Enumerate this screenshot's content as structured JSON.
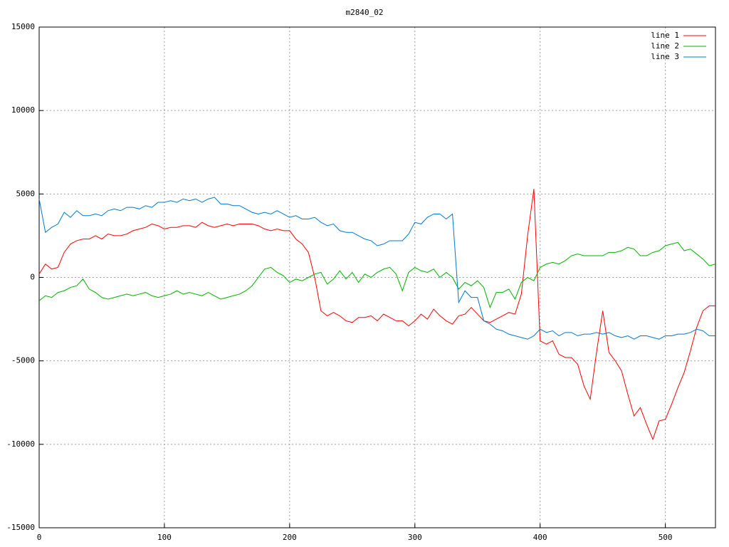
{
  "chart_data": {
    "type": "line",
    "title": "m2840_02",
    "x": [
      0,
      5,
      10,
      15,
      20,
      25,
      30,
      35,
      40,
      45,
      50,
      55,
      60,
      65,
      70,
      75,
      80,
      85,
      90,
      95,
      100,
      105,
      110,
      115,
      120,
      125,
      130,
      135,
      140,
      145,
      150,
      155,
      160,
      165,
      170,
      175,
      180,
      185,
      190,
      195,
      200,
      205,
      210,
      215,
      220,
      225,
      230,
      235,
      240,
      245,
      250,
      255,
      260,
      265,
      270,
      275,
      280,
      285,
      290,
      295,
      300,
      305,
      310,
      315,
      320,
      325,
      330,
      335,
      340,
      345,
      350,
      355,
      360,
      365,
      370,
      375,
      380,
      385,
      390,
      395,
      400,
      405,
      410,
      415,
      420,
      425,
      430,
      435,
      440,
      445,
      450,
      455,
      460,
      465,
      470,
      475,
      480,
      485,
      490,
      495,
      500,
      505,
      510,
      515,
      520,
      525,
      530,
      535,
      540
    ],
    "series": [
      {
        "name": "line 1",
        "color": "#ff0000",
        "values": [
          200,
          800,
          500,
          600,
          1500,
          2000,
          2200,
          2300,
          2300,
          2500,
          2300,
          2600,
          2500,
          2500,
          2600,
          2800,
          2900,
          3000,
          3200,
          3100,
          2900,
          3000,
          3000,
          3100,
          3100,
          3000,
          3300,
          3100,
          3000,
          3100,
          3200,
          3100,
          3200,
          3200,
          3200,
          3100,
          2900,
          2800,
          2900,
          2800,
          2800,
          2300,
          2000,
          1500,
          0,
          -2000,
          -2300,
          -2100,
          -2300,
          -2600,
          -2700,
          -2400,
          -2400,
          -2300,
          -2600,
          -2200,
          -2400,
          -2600,
          -2600,
          -2900,
          -2600,
          -2200,
          -2500,
          -1900,
          -2300,
          -2600,
          -2800,
          -2300,
          -2200,
          -1800,
          -2200,
          -2600,
          -2700,
          -2500,
          -2300,
          -2100,
          -2200,
          -1000,
          2500,
          5300,
          -3800,
          -4000,
          -3800,
          -4600,
          -4800,
          -4800,
          -5200,
          -6500,
          -7300,
          -4500,
          -2000,
          -4500,
          -5000,
          -5600,
          -7000,
          -8300,
          -7800,
          -8800,
          -9700,
          -8600,
          -8500,
          -7600,
          -6600,
          -5700,
          -4400,
          -3000,
          -2000,
          -1700,
          -1700
        ]
      },
      {
        "name": "line 2",
        "color": "#00b000",
        "values": [
          -1400,
          -1100,
          -1200,
          -900,
          -800,
          -600,
          -500,
          -100,
          -700,
          -900,
          -1200,
          -1300,
          -1200,
          -1100,
          -1000,
          -1100,
          -1000,
          -900,
          -1100,
          -1200,
          -1100,
          -1000,
          -800,
          -1000,
          -900,
          -1000,
          -1100,
          -900,
          -1100,
          -1300,
          -1200,
          -1100,
          -1000,
          -800,
          -500,
          0,
          500,
          600,
          300,
          100,
          -300,
          -100,
          -200,
          0,
          200,
          300,
          -400,
          -100,
          400,
          -100,
          300,
          -300,
          200,
          0,
          300,
          500,
          600,
          200,
          -800,
          300,
          600,
          400,
          300,
          500,
          0,
          300,
          0,
          -700,
          -300,
          -500,
          -200,
          -600,
          -1800,
          -900,
          -900,
          -700,
          -1300,
          -300,
          0,
          -200,
          600,
          800,
          900,
          800,
          1000,
          1300,
          1400,
          1300,
          1300,
          1300,
          1300,
          1500,
          1500,
          1600,
          1800,
          1700,
          1300,
          1300,
          1500,
          1600,
          1900,
          2000,
          2100,
          1600,
          1700,
          1400,
          1100,
          700,
          800
        ]
      },
      {
        "name": "line 3",
        "color": "#0078d0",
        "values": [
          4700,
          2700,
          3000,
          3200,
          3900,
          3600,
          4000,
          3700,
          3700,
          3800,
          3700,
          4000,
          4100,
          4000,
          4200,
          4200,
          4100,
          4300,
          4200,
          4500,
          4500,
          4600,
          4500,
          4700,
          4600,
          4700,
          4500,
          4700,
          4800,
          4400,
          4400,
          4300,
          4300,
          4100,
          3900,
          3800,
          3900,
          3800,
          4000,
          3800,
          3600,
          3700,
          3500,
          3500,
          3600,
          3300,
          3100,
          3200,
          2800,
          2700,
          2700,
          2500,
          2300,
          2200,
          1900,
          2000,
          2200,
          2200,
          2200,
          2600,
          3300,
          3200,
          3600,
          3800,
          3800,
          3500,
          3800,
          -1500,
          -800,
          -1200,
          -1200,
          -2600,
          -2800,
          -3100,
          -3200,
          -3400,
          -3500,
          -3600,
          -3700,
          -3500,
          -3100,
          -3300,
          -3200,
          -3500,
          -3300,
          -3300,
          -3500,
          -3400,
          -3400,
          -3300,
          -3400,
          -3300,
          -3500,
          -3600,
          -3500,
          -3700,
          -3500,
          -3500,
          -3600,
          -3700,
          -3500,
          -3500,
          -3400,
          -3400,
          -3300,
          -3100,
          -3200,
          -3500,
          -3500
        ]
      }
    ],
    "xlim": [
      0,
      540
    ],
    "xticks": [
      0,
      100,
      200,
      300,
      400,
      500
    ],
    "ylim": [
      -15000,
      15000
    ],
    "yticks": [
      -15000,
      -10000,
      -5000,
      0,
      5000,
      10000,
      15000
    ],
    "grid": true,
    "legend": "top-right"
  }
}
